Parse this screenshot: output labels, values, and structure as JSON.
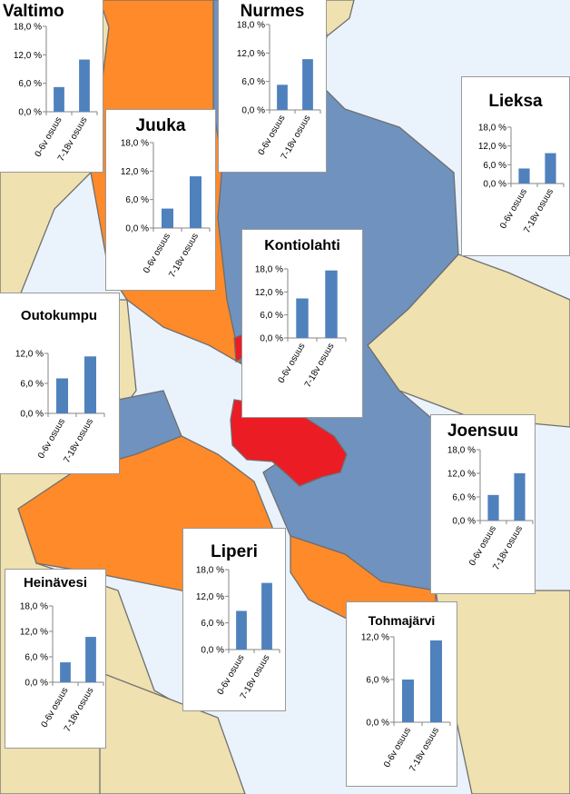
{
  "map": {
    "colors": {
      "sea": "#eaf2fb",
      "neighbor": "#efe1b0",
      "blue": "#7092bf",
      "orange": "#ff8a2a",
      "red": "#ec1c24",
      "border": "#6f6f6f"
    }
  },
  "chart_data": [
    {
      "type": "bar",
      "title": "Valtimo",
      "categories": [
        "0-6v osuus",
        "7-18v osuus"
      ],
      "values": [
        5.2,
        11.0
      ],
      "yticks": [
        "0,0 %",
        "6,0 %",
        "12,0 %",
        "18,0 %"
      ],
      "ylim": [
        0,
        18
      ],
      "color": "#4f81bd"
    },
    {
      "type": "bar",
      "title": "Nurmes",
      "categories": [
        "0-6v osuus",
        "7-18v osuus"
      ],
      "values": [
        5.3,
        10.7
      ],
      "yticks": [
        "0,0 %",
        "6,0 %",
        "12,0 %",
        "18,0 %"
      ],
      "ylim": [
        0,
        18
      ],
      "color": "#4f81bd"
    },
    {
      "type": "bar",
      "title": "Lieksa",
      "categories": [
        "0-6v osuus",
        "7-18v osuus"
      ],
      "values": [
        4.8,
        9.7
      ],
      "yticks": [
        "0,0 %",
        "6,0 %",
        "12,0 %",
        "18,0 %"
      ],
      "ylim": [
        0,
        18
      ],
      "color": "#4f81bd"
    },
    {
      "type": "bar",
      "title": "Juuka",
      "categories": [
        "0-6v osuus",
        "7-18v osuus"
      ],
      "values": [
        4.1,
        10.9
      ],
      "yticks": [
        "0,0 %",
        "6,0 %",
        "12,0 %",
        "18,0 %"
      ],
      "ylim": [
        0,
        18
      ],
      "color": "#4f81bd"
    },
    {
      "type": "bar",
      "title": "Kontiolahti",
      "categories": [
        "0-6v osuus",
        "7-18v osuus"
      ],
      "values": [
        10.3,
        17.6
      ],
      "yticks": [
        "0,0 %",
        "6,0 %",
        "12,0 %",
        "18,0 %"
      ],
      "ylim": [
        0,
        18
      ],
      "color": "#4f81bd"
    },
    {
      "type": "bar",
      "title": "Outokumpu",
      "categories": [
        "0-6v osuus",
        "7-18v osuus"
      ],
      "values": [
        7.0,
        11.4
      ],
      "yticks": [
        "0,0 %",
        "6,0 %",
        "12,0 %"
      ],
      "ylim": [
        0,
        12
      ],
      "color": "#4f81bd"
    },
    {
      "type": "bar",
      "title": "Joensuu",
      "categories": [
        "0-6v osuus",
        "7-18v osuus"
      ],
      "values": [
        6.5,
        12.0
      ],
      "yticks": [
        "0,0 %",
        "6,0 %",
        "12,0 %",
        "18,0 %"
      ],
      "ylim": [
        0,
        18
      ],
      "color": "#4f81bd"
    },
    {
      "type": "bar",
      "title": "Liperi",
      "categories": [
        "0-6v osuus",
        "7-18v osuus"
      ],
      "values": [
        8.7,
        15.0
      ],
      "yticks": [
        "0,0 %",
        "6,0 %",
        "12,0 %",
        "18,0 %"
      ],
      "ylim": [
        0,
        18
      ],
      "color": "#4f81bd"
    },
    {
      "type": "bar",
      "title": "Heinävesi",
      "categories": [
        "0-6v osuus",
        "7-18v osuus"
      ],
      "values": [
        4.7,
        10.7
      ],
      "yticks": [
        "0,0 %",
        "6,0 %",
        "12,0 %",
        "18,0 %"
      ],
      "ylim": [
        0,
        18
      ],
      "color": "#4f81bd"
    },
    {
      "type": "bar",
      "title": "Tohmajärvi",
      "categories": [
        "0-6v osuus",
        "7-18v osuus"
      ],
      "values": [
        6.0,
        11.5
      ],
      "yticks": [
        "0,0 %",
        "6,0 %",
        "12,0 %"
      ],
      "ylim": [
        0,
        12
      ],
      "color": "#4f81bd"
    }
  ]
}
